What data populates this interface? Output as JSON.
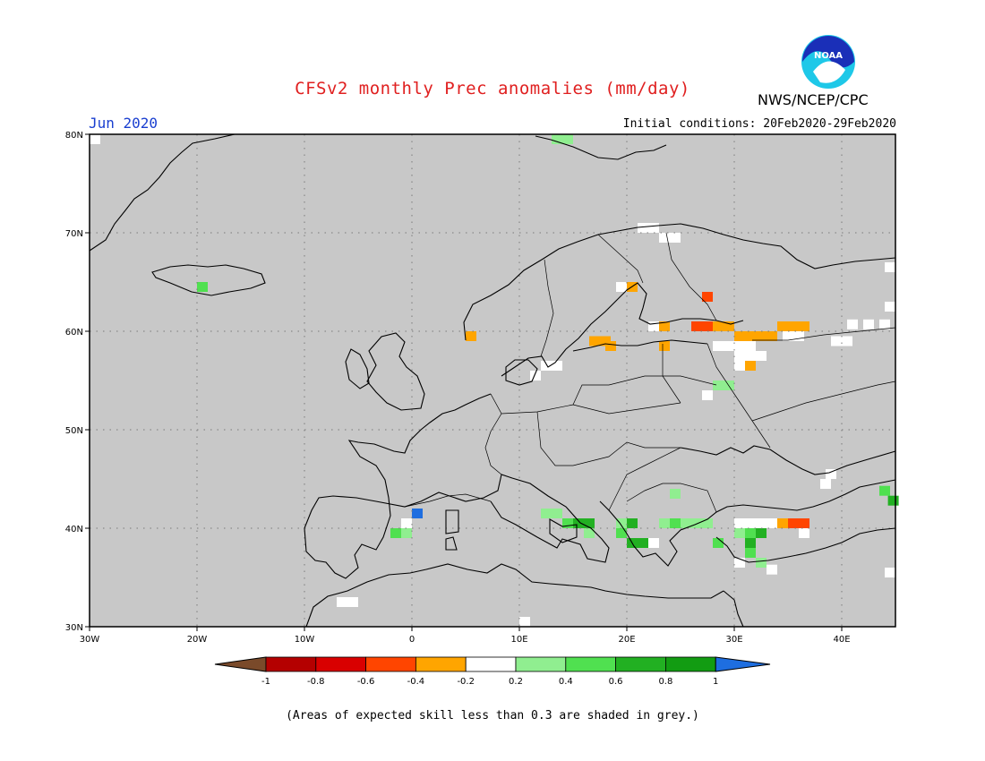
{
  "title": "CFSv2 monthly Prec anomalies (mm/day)",
  "agency": "NWS/NCEP/CPC",
  "logo_text": "NOAA",
  "month": "Jun 2020",
  "initial_conditions": "Initial conditions: 20Feb2020-29Feb2020",
  "footnote": "(Areas of expected skill less than 0.3 are shaded in grey.)",
  "map": {
    "lon_range": [
      -30,
      45
    ],
    "lat_range": [
      30,
      80
    ],
    "lon_ticks": [
      {
        "value": -30,
        "label": "30W"
      },
      {
        "value": -20,
        "label": "20W"
      },
      {
        "value": -10,
        "label": "10W"
      },
      {
        "value": 0,
        "label": "0"
      },
      {
        "value": 10,
        "label": "10E"
      },
      {
        "value": 20,
        "label": "20E"
      },
      {
        "value": 30,
        "label": "30E"
      },
      {
        "value": 40,
        "label": "40E"
      }
    ],
    "lat_ticks": [
      {
        "value": 30,
        "label": "30N"
      },
      {
        "value": 40,
        "label": "40N"
      },
      {
        "value": 50,
        "label": "50N"
      },
      {
        "value": 60,
        "label": "60N"
      },
      {
        "value": 70,
        "label": "70N"
      },
      {
        "value": 80,
        "label": "80N"
      }
    ],
    "background_color": "#c8c8c8",
    "colorbar": {
      "ticks": [
        "-1",
        "-0.8",
        "-0.6",
        "-0.4",
        "-0.2",
        "0.2",
        "0.4",
        "0.6",
        "0.8",
        "1"
      ],
      "colors": [
        "#7a4a2a",
        "#b40000",
        "#d90000",
        "#ff4500",
        "#ffa500",
        "#ffffff",
        "#90ee90",
        "#50e050",
        "#22b022",
        "#129c12",
        "#1e6ee0"
      ]
    },
    "anomaly_cells": [
      {
        "lon": -29.5,
        "lat": 79.5,
        "v": 0.0
      },
      {
        "lon": -19.5,
        "lat": 64.5,
        "v": 0.5
      },
      {
        "lon": 13.5,
        "lat": 79.5,
        "v": 0.3
      },
      {
        "lon": 14.5,
        "lat": 79.5,
        "v": 0.3
      },
      {
        "lon": 21.5,
        "lat": 70.5,
        "v": 0.0
      },
      {
        "lon": 22.5,
        "lat": 70.5,
        "v": 0.0
      },
      {
        "lon": 23.5,
        "lat": 69.5,
        "v": 0.0
      },
      {
        "lon": 24.5,
        "lat": 69.5,
        "v": 0.0
      },
      {
        "lon": 19.5,
        "lat": 64.5,
        "v": 0.0
      },
      {
        "lon": 20.5,
        "lat": 64.5,
        "v": -0.3
      },
      {
        "lon": 5.5,
        "lat": 59.5,
        "v": -0.3
      },
      {
        "lon": 17.0,
        "lat": 59.0,
        "v": -0.3
      },
      {
        "lon": 18.0,
        "lat": 59.0,
        "v": -0.3
      },
      {
        "lon": 18.5,
        "lat": 58.5,
        "v": -0.3
      },
      {
        "lon": 22.5,
        "lat": 60.5,
        "v": 0.0
      },
      {
        "lon": 23.5,
        "lat": 60.5,
        "v": -0.3
      },
      {
        "lon": 23.5,
        "lat": 58.5,
        "v": -0.3
      },
      {
        "lon": 27.5,
        "lat": 63.5,
        "v": -0.5
      },
      {
        "lon": 26.5,
        "lat": 60.5,
        "v": -0.5
      },
      {
        "lon": 27.5,
        "lat": 60.5,
        "v": -0.5
      },
      {
        "lon": 28.5,
        "lat": 60.5,
        "v": -0.3
      },
      {
        "lon": 29.5,
        "lat": 60.5,
        "v": -0.3
      },
      {
        "lon": 30.5,
        "lat": 59.5,
        "v": -0.3
      },
      {
        "lon": 31.5,
        "lat": 59.5,
        "v": -0.3
      },
      {
        "lon": 32.5,
        "lat": 59.5,
        "v": -0.3
      },
      {
        "lon": 33.5,
        "lat": 59.5,
        "v": -0.3
      },
      {
        "lon": 34.5,
        "lat": 60.5,
        "v": -0.3
      },
      {
        "lon": 35.5,
        "lat": 60.5,
        "v": -0.3
      },
      {
        "lon": 36.5,
        "lat": 60.5,
        "v": -0.3
      },
      {
        "lon": 35.0,
        "lat": 59.5,
        "v": 0.0
      },
      {
        "lon": 36.0,
        "lat": 59.5,
        "v": 0.0
      },
      {
        "lon": 28.5,
        "lat": 58.5,
        "v": 0.0
      },
      {
        "lon": 29.5,
        "lat": 58.5,
        "v": 0.0
      },
      {
        "lon": 30.5,
        "lat": 58.5,
        "v": 0.0
      },
      {
        "lon": 31.5,
        "lat": 58.5,
        "v": 0.0
      },
      {
        "lon": 30.5,
        "lat": 57.5,
        "v": 0.0
      },
      {
        "lon": 31.5,
        "lat": 57.5,
        "v": 0.0
      },
      {
        "lon": 32.5,
        "lat": 57.5,
        "v": 0.0
      },
      {
        "lon": 30.5,
        "lat": 56.5,
        "v": 0.0
      },
      {
        "lon": 31.5,
        "lat": 56.5,
        "v": -0.3
      },
      {
        "lon": 39.5,
        "lat": 59.0,
        "v": 0.0
      },
      {
        "lon": 40.5,
        "lat": 59.0,
        "v": 0.0
      },
      {
        "lon": 41.0,
        "lat": 60.7,
        "v": 0.0
      },
      {
        "lon": 42.5,
        "lat": 60.7,
        "v": 0.0
      },
      {
        "lon": 44.0,
        "lat": 60.7,
        "v": 0.0
      },
      {
        "lon": 44.5,
        "lat": 62.5,
        "v": 0.0
      },
      {
        "lon": 44.5,
        "lat": 66.5,
        "v": 0.0
      },
      {
        "lon": 11.5,
        "lat": 55.5,
        "v": 0.0
      },
      {
        "lon": 12.5,
        "lat": 56.5,
        "v": 0.0
      },
      {
        "lon": 13.5,
        "lat": 56.5,
        "v": 0.0
      },
      {
        "lon": 28.5,
        "lat": 54.5,
        "v": 0.3
      },
      {
        "lon": 29.5,
        "lat": 54.5,
        "v": 0.3
      },
      {
        "lon": 27.5,
        "lat": 53.5,
        "v": 0.0
      },
      {
        "lon": 38.5,
        "lat": 44.5,
        "v": 0.0
      },
      {
        "lon": 39.0,
        "lat": 45.5,
        "v": 0.0
      },
      {
        "lon": 44.0,
        "lat": 43.8,
        "v": 0.5
      },
      {
        "lon": 44.8,
        "lat": 42.8,
        "v": 0.7
      },
      {
        "lon": 0.5,
        "lat": 41.5,
        "v": 1.1
      },
      {
        "lon": -0.5,
        "lat": 40.5,
        "v": 0.0
      },
      {
        "lon": -0.5,
        "lat": 39.5,
        "v": 0.3
      },
      {
        "lon": -1.5,
        "lat": 39.5,
        "v": 0.5
      },
      {
        "lon": -6.5,
        "lat": 32.5,
        "v": 0.0
      },
      {
        "lon": -5.5,
        "lat": 32.5,
        "v": 0.0
      },
      {
        "lon": 12.5,
        "lat": 41.5,
        "v": 0.3
      },
      {
        "lon": 13.5,
        "lat": 41.5,
        "v": 0.3
      },
      {
        "lon": 14.5,
        "lat": 40.5,
        "v": 0.5
      },
      {
        "lon": 15.5,
        "lat": 40.5,
        "v": 0.7
      },
      {
        "lon": 16.5,
        "lat": 40.5,
        "v": 0.7
      },
      {
        "lon": 16.5,
        "lat": 39.5,
        "v": 0.3
      },
      {
        "lon": 19.5,
        "lat": 40.5,
        "v": 0.3
      },
      {
        "lon": 20.5,
        "lat": 40.5,
        "v": 0.7
      },
      {
        "lon": 19.5,
        "lat": 39.5,
        "v": 0.5
      },
      {
        "lon": 20.5,
        "lat": 38.5,
        "v": 0.7
      },
      {
        "lon": 21.5,
        "lat": 38.5,
        "v": 0.7
      },
      {
        "lon": 22.5,
        "lat": 38.5,
        "v": 0.0
      },
      {
        "lon": 24.5,
        "lat": 43.5,
        "v": 0.3
      },
      {
        "lon": 23.5,
        "lat": 40.5,
        "v": 0.3
      },
      {
        "lon": 24.5,
        "lat": 40.5,
        "v": 0.5
      },
      {
        "lon": 25.5,
        "lat": 40.5,
        "v": 0.3
      },
      {
        "lon": 26.5,
        "lat": 40.5,
        "v": 0.3
      },
      {
        "lon": 27.5,
        "lat": 40.5,
        "v": 0.3
      },
      {
        "lon": 28.5,
        "lat": 38.5,
        "v": 0.5
      },
      {
        "lon": 30.5,
        "lat": 39.5,
        "v": 0.3
      },
      {
        "lon": 31.5,
        "lat": 39.5,
        "v": 0.5
      },
      {
        "lon": 32.5,
        "lat": 39.5,
        "v": 0.7
      },
      {
        "lon": 31.5,
        "lat": 38.5,
        "v": 0.7
      },
      {
        "lon": 31.5,
        "lat": 37.5,
        "v": 0.5
      },
      {
        "lon": 32.5,
        "lat": 36.5,
        "v": 0.3
      },
      {
        "lon": 30.5,
        "lat": 36.5,
        "v": 0.0
      },
      {
        "lon": 30.5,
        "lat": 40.5,
        "v": 0.0
      },
      {
        "lon": 31.5,
        "lat": 40.5,
        "v": 0.0
      },
      {
        "lon": 32.5,
        "lat": 40.5,
        "v": 0.0
      },
      {
        "lon": 33.5,
        "lat": 40.5,
        "v": 0.0
      },
      {
        "lon": 34.5,
        "lat": 40.5,
        "v": -0.3
      },
      {
        "lon": 35.5,
        "lat": 40.5,
        "v": -0.5
      },
      {
        "lon": 36.5,
        "lat": 40.5,
        "v": -0.5
      },
      {
        "lon": 36.5,
        "lat": 39.5,
        "v": 0.0
      },
      {
        "lon": 33.5,
        "lat": 35.8,
        "v": 0.0
      },
      {
        "lon": 44.5,
        "lat": 35.5,
        "v": 0.0
      },
      {
        "lon": 10.5,
        "lat": 30.5,
        "v": 0.0
      }
    ]
  }
}
